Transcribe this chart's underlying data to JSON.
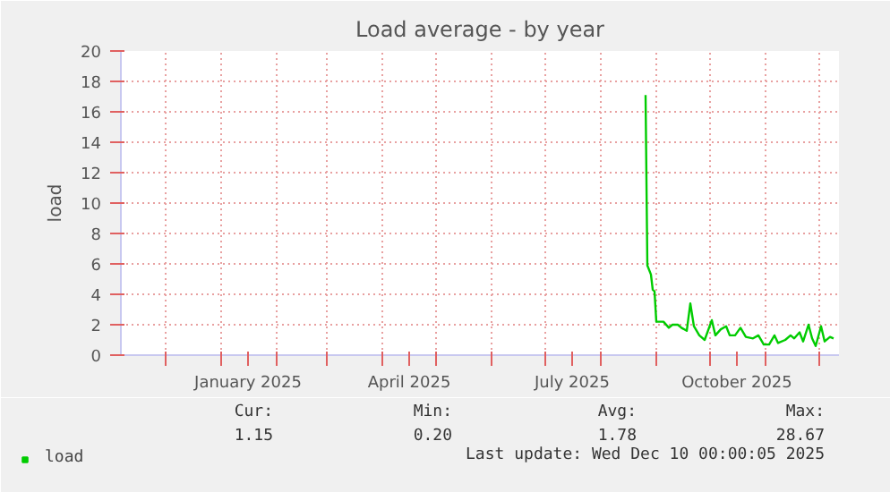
{
  "chart_data": {
    "type": "line",
    "title": "Load average - by year",
    "ylabel": "load",
    "x": [
      "2025-08-26",
      "2025-08-27",
      "2025-08-29",
      "2025-08-30",
      "2025-08-31",
      "2025-09-01",
      "2025-09-05",
      "2025-09-08",
      "2025-09-10",
      "2025-09-13",
      "2025-09-15",
      "2025-09-18",
      "2025-09-20",
      "2025-09-22",
      "2025-09-25",
      "2025-09-28",
      "2025-10-02",
      "2025-10-04",
      "2025-10-07",
      "2025-10-10",
      "2025-10-12",
      "2025-10-15",
      "2025-10-18",
      "2025-10-21",
      "2025-10-25",
      "2025-10-28",
      "2025-10-31",
      "2025-11-03",
      "2025-11-06",
      "2025-11-08",
      "2025-11-12",
      "2025-11-15",
      "2025-11-17",
      "2025-11-20",
      "2025-11-22",
      "2025-11-25",
      "2025-11-27",
      "2025-11-29",
      "2025-12-02",
      "2025-12-04",
      "2025-12-07",
      "2025-12-09"
    ],
    "series": [
      {
        "name": "load",
        "color": "#00cc00",
        "values": [
          17.1,
          5.9,
          5.3,
          4.3,
          4.2,
          2.2,
          2.2,
          1.8,
          2.0,
          2.0,
          1.8,
          1.6,
          3.4,
          1.9,
          1.3,
          1.0,
          2.3,
          1.3,
          1.7,
          1.9,
          1.3,
          1.3,
          1.8,
          1.2,
          1.1,
          1.3,
          0.7,
          0.7,
          1.3,
          0.8,
          1.0,
          1.3,
          1.1,
          1.5,
          0.9,
          2.0,
          1.1,
          0.6,
          1.9,
          0.9,
          1.2,
          1.1
        ]
      }
    ],
    "xlim": [
      "2024-11-06",
      "2025-12-12"
    ],
    "xticks": [
      {
        "value": "2024-12-01",
        "label": null
      },
      {
        "value": "2025-01-01",
        "label": null
      },
      {
        "value": "2025-01-16",
        "label": "January 2025"
      },
      {
        "value": "2025-02-01",
        "label": null
      },
      {
        "value": "2025-03-01",
        "label": null
      },
      {
        "value": "2025-04-01",
        "label": null
      },
      {
        "value": "2025-04-16",
        "label": "April 2025"
      },
      {
        "value": "2025-05-01",
        "label": null
      },
      {
        "value": "2025-06-01",
        "label": null
      },
      {
        "value": "2025-07-01",
        "label": null
      },
      {
        "value": "2025-07-16",
        "label": "July 2025"
      },
      {
        "value": "2025-08-01",
        "label": null
      },
      {
        "value": "2025-09-01",
        "label": null
      },
      {
        "value": "2025-10-01",
        "label": null
      },
      {
        "value": "2025-10-16",
        "label": "October 2025"
      },
      {
        "value": "2025-11-01",
        "label": null
      },
      {
        "value": "2025-12-01",
        "label": null
      }
    ],
    "ylim": [
      0,
      20
    ],
    "yticks": [
      0,
      2,
      4,
      6,
      8,
      10,
      12,
      14,
      16,
      18,
      20
    ],
    "grid": true,
    "legend": "bottom left",
    "marker": "none",
    "line_style": "solid",
    "annotations": [
      "Cur:",
      "Min:",
      "Avg:",
      "Max:",
      "1.15",
      "0.20",
      "1.78",
      "28.67",
      "Last update: Wed Dec 10 00:00:05 2025"
    ]
  }
}
